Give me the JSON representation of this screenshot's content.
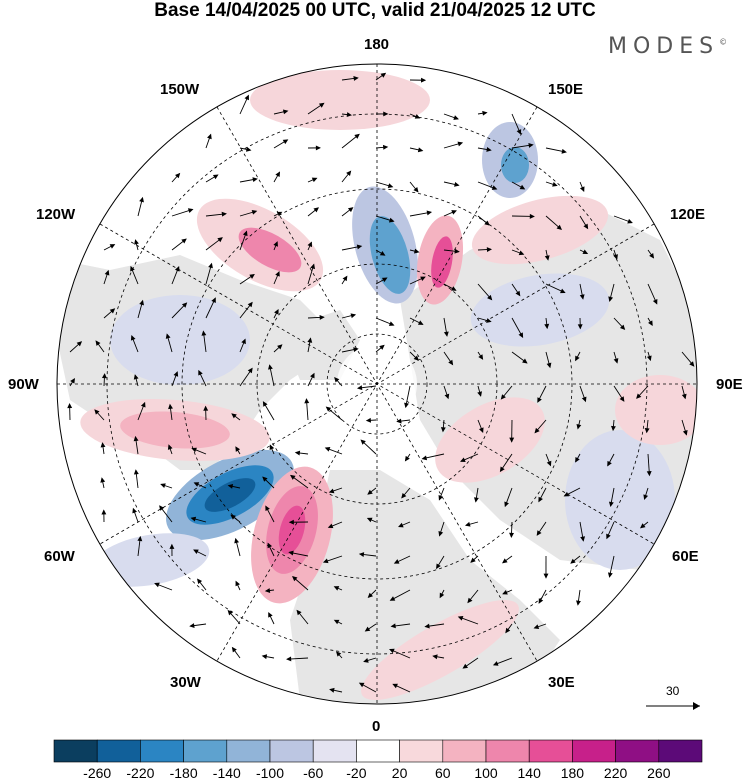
{
  "header": {
    "title": "Base 14/04/2025 00 UTC, valid 21/04/2025 12 UTC",
    "brand": "MODES",
    "brand_mark": "©"
  },
  "longitude_labels": {
    "top": "180",
    "bottom": "0",
    "left": "90W",
    "right": "90E",
    "upper_left": "150W",
    "upper_right": "150E",
    "mid_upper_left": "120W",
    "mid_upper_right": "120E",
    "mid_lower_left": "60W",
    "mid_lower_right": "60E",
    "lower_left": "30W",
    "lower_right": "30E"
  },
  "reference_vector": {
    "label": "30"
  },
  "colorbar": {
    "ticks": [
      "-260",
      "-220",
      "-180",
      "-140",
      "-100",
      "-60",
      "-20",
      "20",
      "60",
      "100",
      "140",
      "180",
      "220",
      "260"
    ],
    "colors": [
      "#0b3e5f",
      "#11609a",
      "#2b85c3",
      "#5ea2cf",
      "#91b4d8",
      "#bcc6e2",
      "#e4e3f1",
      "#ffffff",
      "#f8d9dc",
      "#f4b3c1",
      "#ee86ac",
      "#e64f97",
      "#c7208a",
      "#8f0f84",
      "#5c0a78"
    ]
  },
  "anomaly_colors": {
    "neutral_land": "#e6e6e6",
    "light_blue": "#d8dcee",
    "light_pink": "#f6d6da"
  }
}
